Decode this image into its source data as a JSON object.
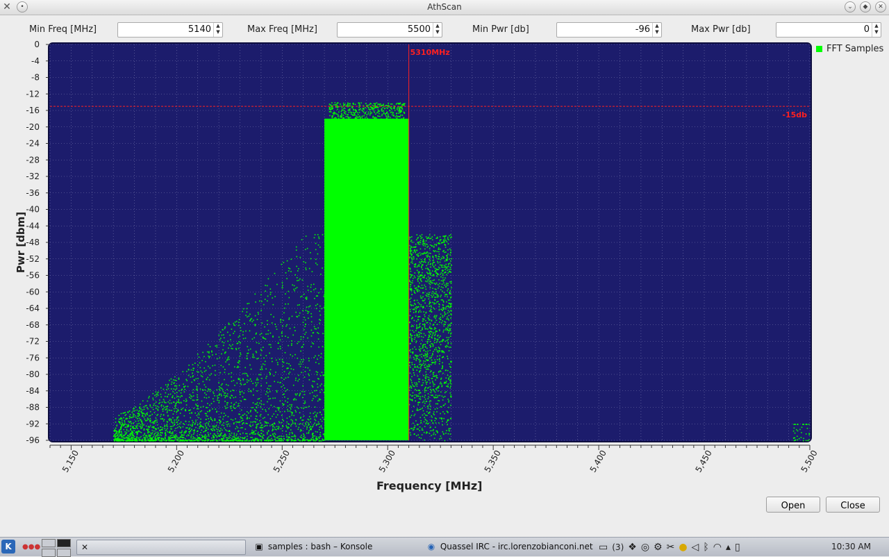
{
  "window": {
    "title": "AthScan",
    "app_icon": "athscan-logo-icon",
    "left_buttons": [
      "menu-dot-icon"
    ],
    "right_buttons": [
      "minimize-icon",
      "maximize-icon",
      "close-icon"
    ]
  },
  "controls": {
    "min_freq": {
      "label": "Min Freq [MHz]",
      "value": "5140"
    },
    "max_freq": {
      "label": "Max Freq [MHz]",
      "value": "5500"
    },
    "min_pwr": {
      "label": "Min Pwr [db]",
      "value": "-96"
    },
    "max_pwr": {
      "label": "Max Pwr [db]",
      "value": "0"
    }
  },
  "chart_data": {
    "type": "scatter",
    "xlabel": "Frequency [MHz]",
    "ylabel": "Pwr [dbm]",
    "xlim": [
      5140,
      5500
    ],
    "ylim": [
      -96,
      0
    ],
    "x_ticks": [
      "5,150",
      "5,200",
      "5,250",
      "5,300",
      "5,350",
      "5,400",
      "5,450",
      "5,500"
    ],
    "x_tick_values": [
      5150,
      5200,
      5250,
      5300,
      5350,
      5400,
      5450,
      5500
    ],
    "y_ticks": [
      0,
      -4,
      -8,
      -12,
      -16,
      -20,
      -24,
      -28,
      -32,
      -36,
      -40,
      -44,
      -48,
      -52,
      -56,
      -60,
      -64,
      -68,
      -72,
      -76,
      -80,
      -84,
      -88,
      -92,
      -96
    ],
    "grid": true,
    "background": "#1c1c6c",
    "series": [
      {
        "name": "FFT Samples",
        "color": "#00ff00",
        "regions": [
          {
            "x_range": [
              5170,
              5270
            ],
            "y_range": [
              -96,
              -46
            ],
            "density": "sparse",
            "note": "rising tail"
          },
          {
            "x_range": [
              5270,
              5310
            ],
            "y_range": [
              -96,
              -16
            ],
            "density": "dense",
            "note": "main channel"
          },
          {
            "x_range": [
              5310,
              5330
            ],
            "y_range": [
              -96,
              -46
            ],
            "density": "medium",
            "note": "right tail"
          },
          {
            "x_range": [
              5492,
              5500
            ],
            "y_range": [
              -96,
              -92
            ],
            "density": "sparse",
            "note": "edge"
          }
        ]
      }
    ],
    "markers": {
      "vertical": {
        "x": 5310,
        "label": "5310MHz",
        "color": "#ff2020"
      },
      "horizontal": {
        "y": -15,
        "label": "-15db",
        "color": "#ff2020"
      }
    },
    "legend": {
      "position": "top-right-outside"
    }
  },
  "buttons": {
    "open": "Open",
    "close": "Close"
  },
  "taskbar": {
    "launcher_icon": "kde-launcher-icon",
    "tasks": [
      {
        "label": "samples : bash – Konsole",
        "icon": "terminal-icon"
      },
      {
        "label": "Quassel IRC - irc.lorenzobianconi.net",
        "icon": "quassel-icon"
      }
    ],
    "tray_icons": [
      "display-icon",
      "workspace-3-icon",
      "dropbox-icon",
      "network-icon",
      "settings-icon",
      "scissors-icon",
      "bulb-icon",
      "volume-icon",
      "bluetooth-icon",
      "wifi-icon",
      "tray-expand-icon",
      "battery-icon"
    ],
    "workspace_number": "3",
    "clock": "10:30 AM"
  }
}
